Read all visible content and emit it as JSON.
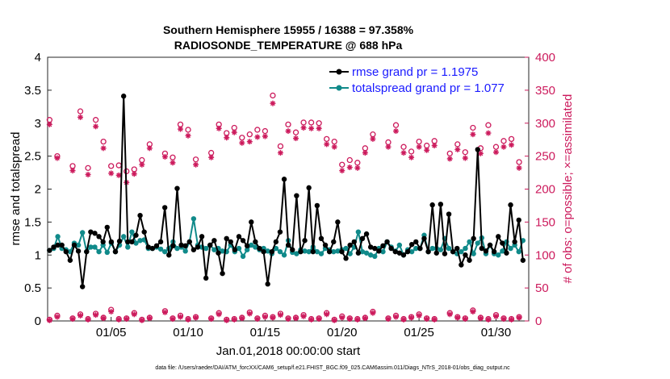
{
  "chart_data": {
    "type": "line",
    "title": "Southern Hemisphere 15955 / 16388 = 97.358%",
    "subtitle": "RADIOSONDE_TEMPERATURE @ 688 hPa",
    "xlabel": "Jan.01,2018 00:00:00 start",
    "ylabel_left": "rmse and totalspread",
    "ylabel_right": "# of obs: o=possible; ×=assimilated",
    "ylim_left": [
      0,
      4
    ],
    "ylim_right": [
      0,
      400
    ],
    "xlim": [
      0.875,
      32.125
    ],
    "left_ticks": [
      "0",
      "0.5",
      "1",
      "1.5",
      "2",
      "2.5",
      "3",
      "3.5",
      "4"
    ],
    "right_ticks": [
      "0",
      "50",
      "100",
      "150",
      "200",
      "250",
      "300",
      "350",
      "400"
    ],
    "x_ticks": [
      {
        "day": 5,
        "label": "01/05"
      },
      {
        "day": 10,
        "label": "01/10"
      },
      {
        "day": 15,
        "label": "01/15"
      },
      {
        "day": 20,
        "label": "01/20"
      },
      {
        "day": 25,
        "label": "01/25"
      },
      {
        "day": 30,
        "label": "01/30"
      }
    ],
    "grid": false,
    "legend": {
      "position": "top-right",
      "entries": [
        "rmse grand pr = 1.1975",
        "totalspread grand pr = 1.077"
      ]
    },
    "colors": {
      "rmse": "#000000",
      "spread": "#108a8a",
      "obs": "#cc1a5c",
      "right_axis": "#cc1a5c"
    },
    "series": [
      {
        "name": "rmse",
        "values": [
          1.07,
          1.12,
          1.15,
          1.15,
          1.05,
          0.92,
          1.15,
          1.06,
          0.52,
          1.05,
          1.35,
          1.33,
          1.28,
          1.2,
          1.42,
          1.2,
          1.05,
          1.21,
          3.41,
          1.2,
          1.2,
          1.3,
          1.6,
          1.35,
          1.12,
          1.1,
          1.14,
          1.2,
          1.72,
          1.0,
          1.14,
          2.01,
          1.15,
          1.14,
          1.2,
          1.08,
          1.12,
          1.28,
          0.65,
          1.15,
          1.22,
          1.03,
          0.72,
          1.25,
          1.2,
          1.08,
          1.28,
          1.22,
          1.14,
          1.5,
          1.2,
          1.1,
          1.05,
          0.56,
          1.05,
          1.2,
          1.35,
          2.15,
          1.15,
          1.08,
          1.9,
          1.05,
          1.22,
          2.02,
          1.05,
          1.75,
          1.25,
          1.15,
          1.05,
          1.2,
          1.5,
          1.05,
          0.95,
          1.15,
          1.2,
          1.03,
          1.25,
          1.32,
          1.12,
          1.1,
          1.06,
          1.14,
          1.2,
          1.1,
          1.05,
          1.03,
          1.0,
          1.05,
          1.16,
          1.2,
          1.1,
          1.25,
          1.05,
          1.76,
          1.03,
          1.77,
          1.02,
          1.62,
          1.05,
          1.1,
          0.85,
          1.0,
          0.92,
          1.25,
          2.6,
          1.1,
          1.06,
          1.15,
          1.05,
          1.28,
          1.18,
          1.03,
          1.76,
          1.2,
          1.53,
          0.92
        ]
      },
      {
        "name": "totalspread",
        "values": [
          1.07,
          1.1,
          1.28,
          1.1,
          1.08,
          1.05,
          1.18,
          1.15,
          1.34,
          1.05,
          1.12,
          1.12,
          1.05,
          1.15,
          1.04,
          1.18,
          1.05,
          1.15,
          1.28,
          1.12,
          1.35,
          1.18,
          1.22,
          1.23,
          1.1,
          1.1,
          1.12,
          1.09,
          1.05,
          1.1,
          1.2,
          1.1,
          1.12,
          1.06,
          1.2,
          1.55,
          1.15,
          1.12,
          1.1,
          1.15,
          1.08,
          1.1,
          1.06,
          1.05,
          1.15,
          1.05,
          1.1,
          0.98,
          1.08,
          1.15,
          1.12,
          1.08,
          1.1,
          1.06,
          1.02,
          1.1,
          1.05,
          1.0,
          1.22,
          1.04,
          1.02,
          1.08,
          1.06,
          1.05,
          1.12,
          1.05,
          1.02,
          1.1,
          1.08,
          1.05,
          1.06,
          1.08,
          1.1,
          1.02,
          1.12,
          1.35,
          1.05,
          1.03,
          1.0,
          0.98,
          1.1,
          1.05,
          1.2,
          1.12,
          1.06,
          1.15,
          1.0,
          1.08,
          1.05,
          1.1,
          1.1,
          1.3,
          1.05,
          1.1,
          1.1,
          1.08,
          1.25,
          1.1,
          1.05,
          1.02,
          1.05,
          1.1,
          1.2,
          1.02,
          1.18,
          1.26,
          1.02,
          1.15,
          1.02,
          1.0,
          1.06,
          1.2,
          1.1,
          1.15,
          1.05,
          1.22
        ]
      }
    ],
    "obs_possible": {
      "days": [
        1.0,
        1.5,
        2.5,
        3.0,
        3.5,
        4.0,
        4.5,
        5.0,
        5.5,
        6.0,
        6.5,
        7.0,
        7.5,
        8.5,
        9.0,
        9.5,
        10.0,
        10.5,
        11.5,
        12.0,
        12.5,
        13.0,
        13.5,
        14.0,
        14.5,
        15.0,
        15.5,
        16.0,
        16.5,
        17.0,
        17.5,
        18.0,
        18.5,
        19.0,
        19.5,
        20.0,
        20.5,
        21.0,
        21.5,
        22.0,
        23.0,
        23.5,
        24.0,
        24.5,
        25.0,
        25.5,
        26.0,
        27.0,
        27.5,
        28.0,
        28.5,
        29.0,
        29.5,
        30.0,
        30.5,
        31.0,
        31.5
      ],
      "values": [
        305,
        250,
        235,
        318,
        232,
        305,
        272,
        235,
        236,
        227,
        230,
        244,
        268,
        254,
        248,
        298,
        290,
        245,
        255,
        298,
        285,
        293,
        278,
        283,
        290,
        288,
        342,
        265,
        298,
        286,
        301,
        301,
        300,
        276,
        272,
        237,
        244,
        240,
        262,
        283,
        271,
        297,
        264,
        257,
        272,
        266,
        273,
        254,
        268,
        256,
        293,
        262,
        297,
        264,
        273,
        276,
        241
      ],
      "zero_values": [
        2,
        8,
        4,
        10,
        3,
        11,
        5,
        17,
        3,
        4,
        12,
        2,
        5,
        15,
        4,
        8,
        3,
        6,
        4,
        12,
        2,
        3,
        5,
        13,
        4,
        8,
        6,
        11,
        4,
        5,
        9,
        3,
        4,
        12,
        2,
        7,
        4,
        3,
        5,
        14,
        4,
        8,
        3,
        6,
        10,
        4,
        3,
        12,
        6,
        4,
        16,
        5,
        3,
        9,
        4,
        3,
        6
      ]
    },
    "obs_assimilated": {
      "days": [
        1.0,
        1.5,
        2.5,
        3.0,
        3.5,
        4.0,
        4.5,
        5.0,
        5.5,
        6.0,
        6.5,
        7.0,
        7.5,
        8.5,
        9.0,
        9.5,
        10.0,
        10.5,
        11.5,
        12.0,
        12.5,
        13.0,
        13.5,
        14.0,
        14.5,
        15.0,
        15.5,
        16.0,
        16.5,
        17.0,
        17.5,
        18.0,
        18.5,
        19.0,
        19.5,
        20.0,
        20.5,
        21.0,
        21.5,
        22.0,
        23.0,
        23.5,
        24.0,
        24.5,
        25.0,
        25.5,
        26.0,
        27.0,
        27.5,
        28.0,
        28.5,
        29.0,
        29.5,
        30.0,
        30.5,
        31.0,
        31.5
      ],
      "values": [
        298,
        247,
        228,
        309,
        222,
        295,
        262,
        224,
        221,
        210,
        223,
        237,
        262,
        249,
        240,
        291,
        281,
        237,
        248,
        292,
        278,
        286,
        270,
        272,
        279,
        280,
        330,
        255,
        288,
        277,
        293,
        292,
        292,
        268,
        264,
        228,
        233,
        232,
        255,
        276,
        264,
        288,
        255,
        248,
        264,
        259,
        266,
        246,
        260,
        247,
        283,
        254,
        285,
        256,
        264,
        267,
        232
      ],
      "zero_values": [
        1,
        6,
        3,
        8,
        2,
        9,
        4,
        14,
        2,
        3,
        10,
        1,
        4,
        13,
        3,
        6,
        2,
        5,
        3,
        10,
        1,
        2,
        4,
        11,
        3,
        6,
        5,
        9,
        3,
        4,
        7,
        2,
        3,
        10,
        1,
        5,
        3,
        2,
        4,
        12,
        3,
        6,
        2,
        5,
        8,
        3,
        2,
        10,
        5,
        3,
        14,
        4,
        2,
        7,
        3,
        2,
        5
      ]
    },
    "footer": "data file: /Users/raeder/DAI/ATM_forcXX/CAM6_setup/f.e21.FHIST_BGC.f09_025.CAM6assim.011/Diags_NTrS_2018-01/obs_diag_output.nc"
  }
}
